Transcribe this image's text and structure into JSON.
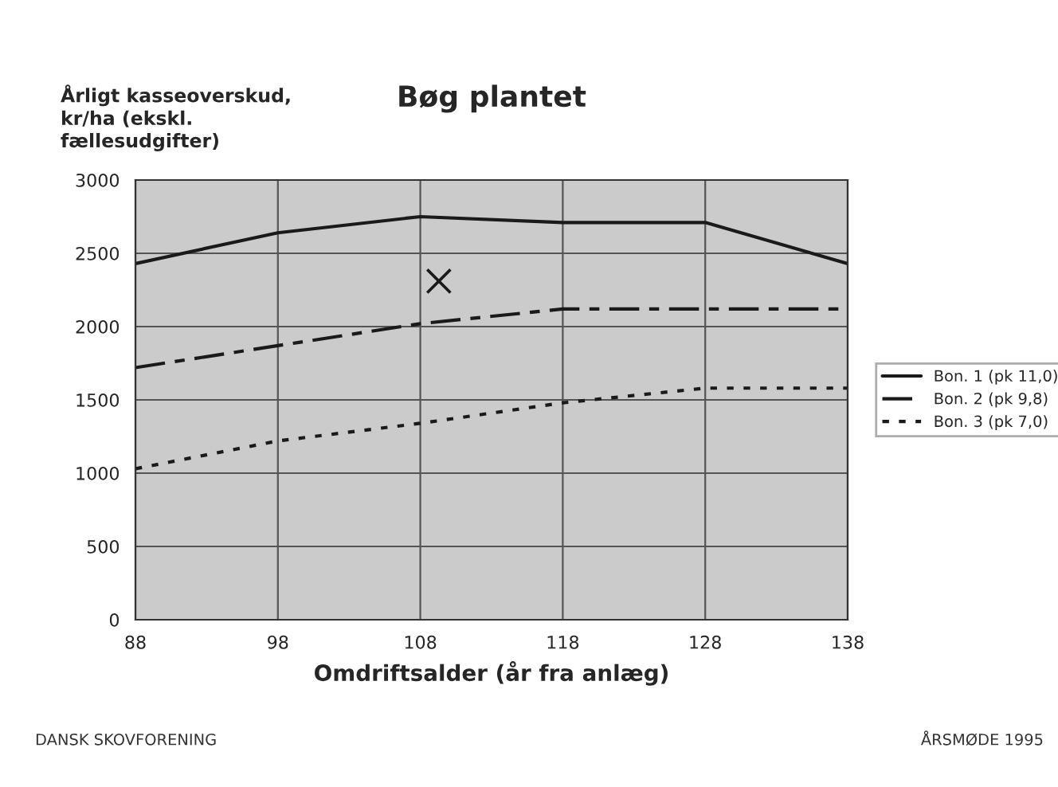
{
  "chart_data": {
    "type": "line",
    "title": "Bøg plantet",
    "ylabel": "Årligt kasseoverskud,\nkr/ha (ekskl.\nfællesudgifter)",
    "xlabel": "Omdriftsalder (år fra anlæg)",
    "x": [
      88,
      98,
      108,
      118,
      128,
      138
    ],
    "series": [
      {
        "name": "Bon. 1 (pk 11,0)",
        "color": "#1a1a1a",
        "line_style": "solid",
        "values": [
          2430,
          2640,
          2750,
          2710,
          2710,
          2430
        ]
      },
      {
        "name": "Bon. 2 (pk 9,8)",
        "color": "#1a1a1a",
        "line_style": "dashed",
        "values": [
          1720,
          1870,
          2020,
          2120,
          2120,
          2120
        ]
      },
      {
        "name": "Bon. 3 (pk 7,0)",
        "color": "#1a1a1a",
        "line_style": "dotted",
        "values": [
          1030,
          1220,
          1340,
          1480,
          1580,
          1580
        ]
      },
      {
        "type": "scatter",
        "x": [
          109.3
        ],
        "color": "#1a1a1a",
        "marker": "cross",
        "values": [
          2310
        ]
      }
    ],
    "xlim": [
      88,
      138
    ],
    "xticks": [
      88,
      98,
      108,
      118,
      128,
      138
    ],
    "ylim": [
      0,
      3000
    ],
    "yticks": [
      0,
      500,
      1000,
      1500,
      2000,
      2500,
      3000
    ],
    "grid": true,
    "legend": "right",
    "annotations": [
      "DANSK SKOVFORENING",
      "ÅRSMØDE 1995"
    ]
  }
}
